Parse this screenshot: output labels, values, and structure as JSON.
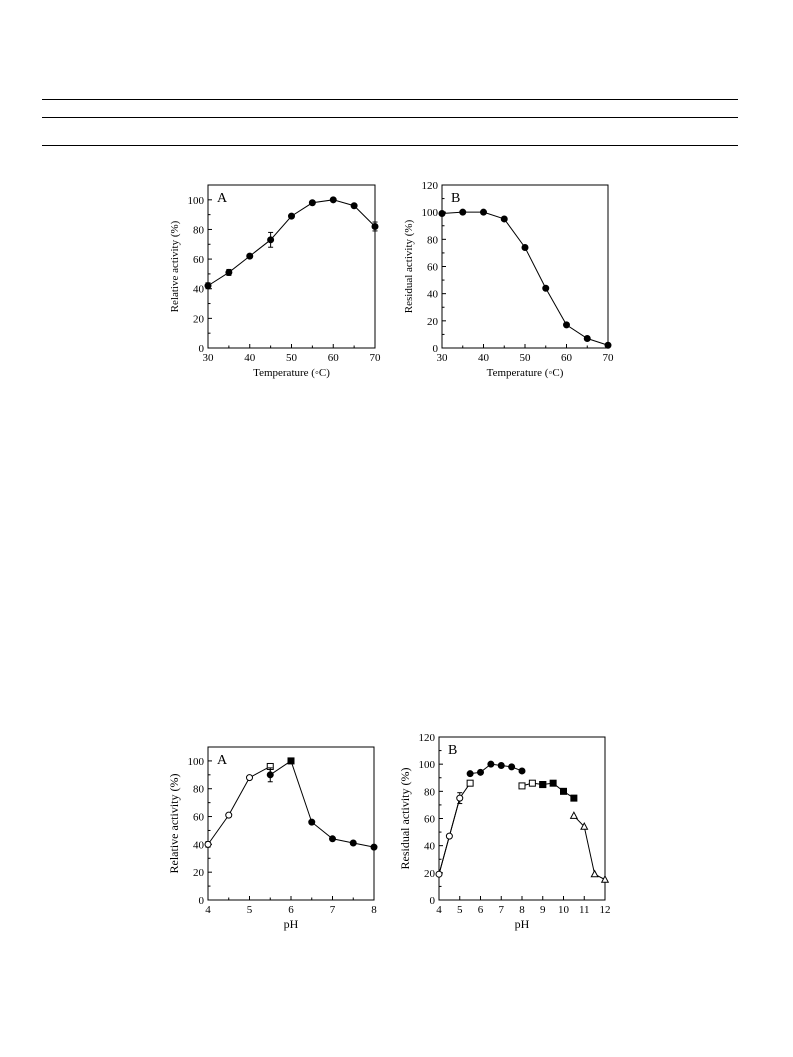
{
  "colors": {
    "line": "#000000",
    "marker_filled": "#000000",
    "marker_open": "#ffffff",
    "background": "#ffffff"
  },
  "chart_data": [
    {
      "type": "line",
      "panel_label": "A",
      "xlabel": "Temperature (◦C)",
      "ylabel": "Relative activity (%)",
      "xlim": [
        30,
        70
      ],
      "ylim": [
        0,
        110
      ],
      "xticks": [
        30,
        40,
        50,
        60,
        70
      ],
      "yticks": [
        0,
        20,
        40,
        60,
        80,
        100
      ],
      "grid": false,
      "series": [
        {
          "marker": "filled-circle",
          "points": [
            [
              30,
              42
            ],
            [
              35,
              51
            ],
            [
              40,
              62
            ],
            [
              45,
              73
            ],
            [
              50,
              89
            ],
            [
              55,
              98
            ],
            [
              60,
              100
            ],
            [
              65,
              96
            ],
            [
              70,
              82
            ]
          ],
          "errors": [
            2,
            2,
            1,
            5,
            1,
            1,
            1,
            1,
            3
          ]
        }
      ]
    },
    {
      "type": "line",
      "panel_label": "B",
      "xlabel": "Temperature (◦C)",
      "ylabel": "Residual activity (%)",
      "xlim": [
        30,
        70
      ],
      "ylim": [
        0,
        120
      ],
      "xticks": [
        30,
        40,
        50,
        60,
        70
      ],
      "yticks": [
        0,
        20,
        40,
        60,
        80,
        100,
        120
      ],
      "grid": false,
      "series": [
        {
          "marker": "filled-circle",
          "points": [
            [
              30,
              99
            ],
            [
              35,
              100
            ],
            [
              40,
              100
            ],
            [
              45,
              95
            ],
            [
              50,
              74
            ],
            [
              55,
              44
            ],
            [
              60,
              17
            ],
            [
              65,
              7
            ],
            [
              70,
              2
            ]
          ],
          "errors": [
            1,
            1,
            1,
            1,
            1,
            1,
            1,
            1,
            1
          ]
        }
      ]
    },
    {
      "type": "line",
      "panel_label": "A",
      "xlabel": "pH",
      "ylabel": "Relative activity (%)",
      "xlim": [
        4,
        8
      ],
      "ylim": [
        0,
        110
      ],
      "xticks": [
        4,
        5,
        6,
        7,
        8
      ],
      "yticks": [
        0,
        20,
        40,
        60,
        80,
        100
      ],
      "grid": false,
      "series": [
        {
          "marker": "open-circle",
          "points": [
            [
              4.0,
              40
            ],
            [
              4.5,
              61
            ],
            [
              5.0,
              88
            ]
          ],
          "errors": [
            2,
            1,
            1
          ]
        },
        {
          "marker": "open-square",
          "points": [
            [
              5.5,
              96
            ]
          ],
          "errors": [
            1
          ]
        },
        {
          "marker": "filled-circle",
          "points": [
            [
              5.5,
              90
            ]
          ],
          "errors": [
            5
          ]
        },
        {
          "marker": "filled-square",
          "points": [
            [
              6.0,
              100
            ]
          ],
          "errors": [
            1
          ]
        },
        {
          "marker": "filled-circle",
          "points": [
            [
              6.5,
              56
            ],
            [
              7.0,
              44
            ],
            [
              7.5,
              41
            ],
            [
              8.0,
              38
            ]
          ],
          "errors": [
            1,
            1,
            1,
            1
          ]
        }
      ],
      "connect_order": [
        [
          4.0,
          40
        ],
        [
          4.5,
          61
        ],
        [
          5.0,
          88
        ],
        [
          5.5,
          96
        ],
        [
          5.5,
          90
        ],
        [
          6.0,
          100
        ],
        [
          6.5,
          56
        ],
        [
          7.0,
          44
        ],
        [
          7.5,
          41
        ],
        [
          8.0,
          38
        ]
      ]
    },
    {
      "type": "line",
      "panel_label": "B",
      "xlabel": "pH",
      "ylabel": "Residual activity (%)",
      "xlim": [
        4,
        12
      ],
      "ylim": [
        0,
        120
      ],
      "xticks": [
        4,
        5,
        6,
        7,
        8,
        9,
        10,
        11,
        12
      ],
      "yticks": [
        0,
        20,
        40,
        60,
        80,
        100,
        120
      ],
      "grid": false,
      "series": [
        {
          "marker": "open-circle",
          "points": [
            [
              4.0,
              19
            ],
            [
              4.5,
              47
            ],
            [
              5.0,
              75
            ]
          ],
          "errors": [
            1,
            1,
            4
          ],
          "connect": true
        },
        {
          "marker": "open-square",
          "points": [
            [
              5.5,
              86
            ]
          ],
          "errors": [
            2
          ],
          "connect": true
        },
        {
          "marker": "filled-circle",
          "points": [
            [
              5.5,
              93
            ],
            [
              6.0,
              94
            ],
            [
              6.5,
              100
            ],
            [
              7.0,
              99
            ],
            [
              7.5,
              98
            ],
            [
              8.0,
              95
            ]
          ],
          "errors": [
            1,
            1,
            1,
            1,
            1,
            1
          ],
          "connect": true
        },
        {
          "marker": "open-square",
          "points": [
            [
              8.0,
              84
            ],
            [
              8.5,
              86
            ],
            [
              9.0,
              85
            ]
          ],
          "errors": [
            1,
            1,
            1
          ],
          "connect": true
        },
        {
          "marker": "filled-square",
          "points": [
            [
              9.0,
              85
            ],
            [
              9.5,
              86
            ],
            [
              10.0,
              80
            ],
            [
              10.5,
              75
            ]
          ],
          "errors": [
            1,
            1,
            1,
            1
          ],
          "connect": true
        },
        {
          "marker": "open-triangle",
          "points": [
            [
              10.5,
              62
            ],
            [
              11.0,
              54
            ],
            [
              11.5,
              19
            ],
            [
              12.0,
              15
            ]
          ],
          "errors": [
            1,
            1,
            1,
            1
          ],
          "connect": true
        }
      ],
      "connect_order": [
        [
          4.0,
          19
        ],
        [
          4.5,
          47
        ],
        [
          5.0,
          75
        ],
        [
          5.5,
          86
        ]
      ]
    }
  ]
}
